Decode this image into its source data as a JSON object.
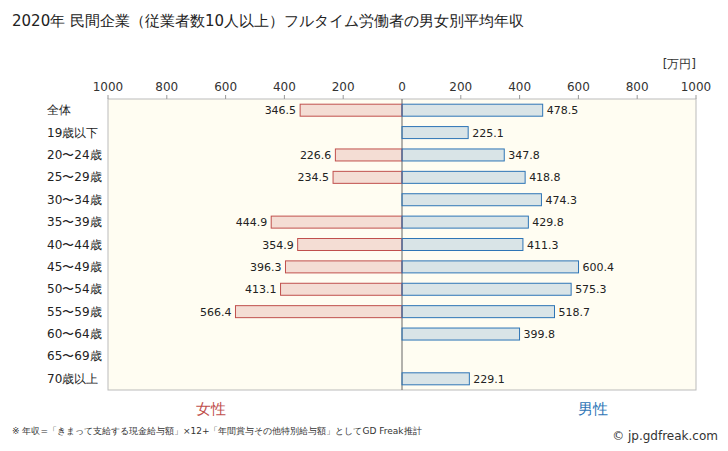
{
  "chart_data": {
    "type": "butterfly",
    "title": "2020年 民間企業（従業者数10人以上）フルタイム労働者の男女別平均年収",
    "xlabel": "[万円]",
    "annotations": [
      "※ 年収=「きまって支給する現金給与額」×12+「年間賞与その他特別給与額」としてGD Freak推計",
      "© jp.gdfreak.com"
    ],
    "orientation": "horizontal",
    "categories": [
      "全体",
      "19歳以下",
      "20〜24歳",
      "25〜29歳",
      "30〜34歳",
      "35〜39歳",
      "40〜44歳",
      "45〜49歳",
      "50〜54歳",
      "55〜59歳",
      "60〜64歳",
      "65〜69歳",
      "70歳以上"
    ],
    "series": [
      {
        "name": "女性",
        "color": "#c0504d",
        "values": [
          346.5,
          null,
          226.6,
          234.5,
          null,
          444.9,
          354.9,
          396.3,
          413.1,
          566.4,
          null,
          null,
          null
        ]
      },
      {
        "name": "男性",
        "color": "#2e75b6",
        "values": [
          478.5,
          225.1,
          347.8,
          418.8,
          474.3,
          429.8,
          411.3,
          600.4,
          575.3,
          518.7,
          399.8,
          null,
          229.1
        ]
      }
    ],
    "xlim": [
      0,
      1000
    ],
    "xticks": [
      0,
      200,
      400,
      600,
      800,
      1000
    ],
    "data_labels": true,
    "grid": false
  }
}
